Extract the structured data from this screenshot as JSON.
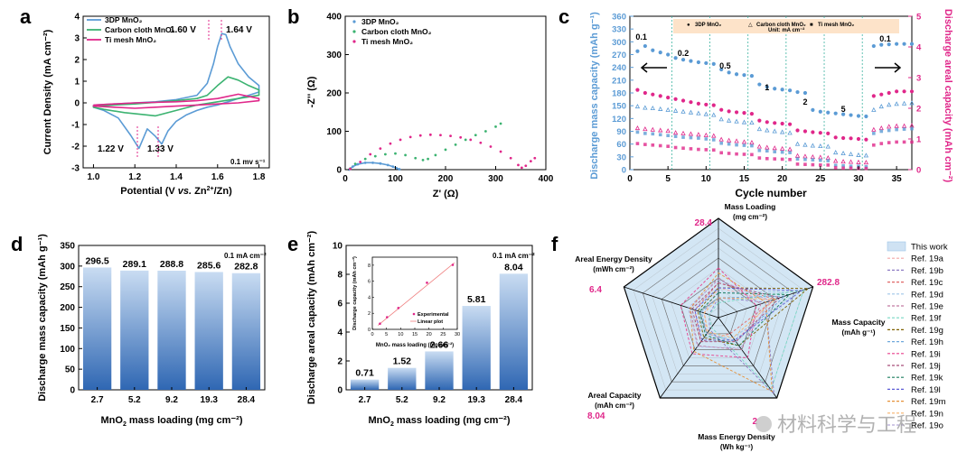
{
  "panel_letters": {
    "a": "a",
    "b": "b",
    "c": "c",
    "d": "d",
    "e": "e",
    "f": "f"
  },
  "colors": {
    "blue": "#5b9bd5",
    "green": "#3cb371",
    "magenta": "#e0278a",
    "pinkfill": "#f4c9dd",
    "bluefill": "#d3e6f4",
    "grid": "#777777",
    "axis": "#000000",
    "bar_top": "#c9dcf2",
    "bar_bottom": "#2f67b3"
  },
  "watermark": "材料科学与工程",
  "chart_data": [
    {
      "id": "a",
      "type": "line",
      "title": "",
      "xlabel_pre": "Potential (V ",
      "xlabel_vs": "vs.",
      "xlabel_mid": " Zn",
      "xlabel_sup": "2+",
      "xlabel_post": "/Zn)",
      "ylabel": "Current Density (mA cm⁻²)",
      "xlim": [
        0.95,
        1.85
      ],
      "ylim": [
        -3,
        4
      ],
      "xticks": [
        "1.0",
        "1.2",
        "1.4",
        "1.6",
        "1.8"
      ],
      "xtick_vals": [
        1.0,
        1.2,
        1.4,
        1.6,
        1.8
      ],
      "yticks": [
        "-3",
        "-2",
        "-1",
        "0",
        "1",
        "2",
        "3",
        "4"
      ],
      "ytick_vals": [
        -3,
        -2,
        -1,
        0,
        1,
        2,
        3,
        4
      ],
      "legend": [
        "3DP MnO₂",
        "Carbon cloth MnO₂",
        "Ti mesh MnO₂"
      ],
      "annotations": {
        "p160": "1.60 V",
        "p164": "1.64 V",
        "p122": "1.22 V",
        "p133": "1.33 V",
        "scan": "0.1 mv s⁻¹"
      },
      "series": [
        {
          "name": "3DP MnO₂",
          "color": "#5b9bd5",
          "x": [
            1.0,
            1.1,
            1.2,
            1.3,
            1.4,
            1.45,
            1.5,
            1.55,
            1.58,
            1.6,
            1.62,
            1.64,
            1.66,
            1.7,
            1.75,
            1.8,
            1.8,
            1.75,
            1.7,
            1.65,
            1.6,
            1.55,
            1.5,
            1.45,
            1.4,
            1.36,
            1.33,
            1.3,
            1.26,
            1.22,
            1.18,
            1.12,
            1.05,
            1.0,
            1.0
          ],
          "y": [
            -0.1,
            -0.05,
            0.0,
            0.05,
            0.15,
            0.25,
            0.35,
            0.9,
            1.8,
            2.6,
            3.2,
            3.15,
            2.6,
            1.8,
            1.2,
            0.8,
            0.5,
            0.35,
            0.2,
            0.05,
            -0.1,
            -0.2,
            -0.35,
            -0.55,
            -0.85,
            -1.3,
            -1.9,
            -1.55,
            -1.2,
            -2.1,
            -1.5,
            -0.7,
            -0.35,
            -0.2,
            -0.1
          ]
        },
        {
          "name": "Carbon cloth MnO₂",
          "color": "#3cb371",
          "x": [
            1.0,
            1.2,
            1.4,
            1.5,
            1.55,
            1.6,
            1.65,
            1.7,
            1.75,
            1.8,
            1.8,
            1.7,
            1.6,
            1.5,
            1.4,
            1.3,
            1.25,
            1.15,
            1.05,
            1.0,
            1.0
          ],
          "y": [
            -0.15,
            -0.05,
            0.1,
            0.2,
            0.35,
            0.8,
            1.2,
            1.05,
            0.8,
            0.6,
            0.35,
            0.2,
            0.05,
            -0.1,
            -0.35,
            -0.6,
            -0.55,
            -0.45,
            -0.3,
            -0.2,
            -0.15
          ]
        },
        {
          "name": "Ti mesh MnO₂",
          "color": "#e0278a",
          "x": [
            1.0,
            1.2,
            1.4,
            1.5,
            1.6,
            1.7,
            1.75,
            1.8,
            1.8,
            1.7,
            1.6,
            1.5,
            1.4,
            1.3,
            1.2,
            1.1,
            1.0,
            1.0
          ],
          "y": [
            -0.1,
            0.0,
            0.05,
            0.1,
            0.2,
            0.4,
            0.3,
            0.2,
            0.1,
            0.0,
            -0.05,
            -0.1,
            -0.15,
            -0.2,
            -0.25,
            -0.2,
            -0.15,
            -0.1
          ]
        }
      ]
    },
    {
      "id": "b",
      "type": "scatter",
      "xlabel": "Z' (Ω)",
      "ylabel": "-Z'' (Ω)",
      "xlim": [
        0,
        400
      ],
      "ylim": [
        0,
        400
      ],
      "xticks": [
        "0",
        "100",
        "200",
        "300",
        "400"
      ],
      "xtick_vals": [
        0,
        100,
        200,
        300,
        400
      ],
      "yticks": [
        "0",
        "100",
        "200",
        "300",
        "400"
      ],
      "ytick_vals": [
        0,
        100,
        200,
        300,
        400
      ],
      "legend": [
        "3DP MnO₂",
        "Carbon cloth MnO₂",
        "Ti mesh MnO₂"
      ],
      "series": [
        {
          "name": "3DP MnO₂",
          "color": "#5b9bd5",
          "x": [
            8,
            15,
            25,
            40,
            55,
            70,
            85,
            95,
            102,
            108
          ],
          "y": [
            0,
            8,
            14,
            18,
            18,
            16,
            12,
            8,
            4,
            1
          ]
        },
        {
          "name": "Carbon cloth MnO₂",
          "color": "#3cb371",
          "x": [
            10,
            20,
            40,
            60,
            80,
            100,
            120,
            140,
            155,
            165,
            180,
            200,
            220,
            240,
            260,
            280,
            300,
            310
          ],
          "y": [
            3,
            15,
            28,
            35,
            40,
            42,
            38,
            30,
            25,
            28,
            38,
            52,
            65,
            78,
            90,
            100,
            112,
            120
          ]
        },
        {
          "name": "Ti mesh MnO₂",
          "color": "#e0278a",
          "x": [
            10,
            30,
            50,
            70,
            90,
            110,
            130,
            150,
            170,
            190,
            210,
            230,
            250,
            270,
            290,
            310,
            330,
            345,
            352,
            360,
            370,
            378
          ],
          "y": [
            2,
            20,
            40,
            55,
            68,
            78,
            85,
            89,
            91,
            90,
            88,
            84,
            78,
            70,
            60,
            47,
            30,
            12,
            5,
            10,
            22,
            30
          ]
        }
      ]
    },
    {
      "id": "c",
      "type": "scatter",
      "xlabel": "Cycle number",
      "ylabel": "Discharge mass capacity (mAh g⁻¹)",
      "y2label": "Discharge areal capacity (mAh cm⁻²)",
      "xlim": [
        0,
        37
      ],
      "ylim": [
        0,
        360
      ],
      "y2lim": [
        0,
        5
      ],
      "xticks": [
        "0",
        "5",
        "10",
        "15",
        "20",
        "25",
        "30",
        "35"
      ],
      "xtick_vals": [
        0,
        5,
        10,
        15,
        20,
        25,
        30,
        35
      ],
      "yticks": [
        "0",
        "30",
        "60",
        "90",
        "120",
        "150",
        "180",
        "210",
        "240",
        "270",
        "300",
        "330",
        "360"
      ],
      "ytick_vals": [
        0,
        30,
        60,
        90,
        120,
        150,
        180,
        210,
        240,
        270,
        300,
        330,
        360
      ],
      "y2ticks": [
        "0",
        "1",
        "2",
        "3",
        "4",
        "5"
      ],
      "y2tick_vals": [
        0,
        1,
        2,
        3,
        4,
        5
      ],
      "legend": [
        "3DP MnO₂",
        "Carbon cloth MnO₂",
        "Ti mesh MnO₂"
      ],
      "unit_note": "Unit: mA cm⁻²",
      "rate_labels": [
        {
          "text": "0.1",
          "x": 1.5
        },
        {
          "text": "0.2",
          "x": 7
        },
        {
          "text": "0.5",
          "x": 12.5
        },
        {
          "text": "1",
          "x": 18
        },
        {
          "text": "2",
          "x": 23
        },
        {
          "text": "5",
          "x": 28
        },
        {
          "text": "0.1",
          "x": 33.5
        }
      ],
      "dividers": [
        5.5,
        10.5,
        15.5,
        20.5,
        25.5,
        30.5
      ],
      "series": [
        {
          "name": "3DP mass",
          "color": "#5b9bd5",
          "marker": "circle",
          "values": [
            278,
            290,
            280,
            275,
            270,
            262,
            258,
            255,
            252,
            250,
            248,
            235,
            228,
            224,
            222,
            220,
            200,
            194,
            190,
            188,
            186,
            182,
            180,
            140,
            136,
            134,
            132,
            130,
            128,
            126,
            125,
            290,
            293,
            294,
            295,
            295,
            295
          ]
        },
        {
          "name": "3DP areal",
          "color": "#e0278a",
          "marker": "circle",
          "values": [
            2.6,
            2.5,
            2.45,
            2.4,
            2.35,
            2.3,
            2.25,
            2.2,
            2.15,
            2.12,
            2.1,
            1.95,
            1.9,
            1.87,
            1.85,
            1.82,
            1.6,
            1.55,
            1.52,
            1.5,
            1.48,
            1.28,
            1.25,
            1.22,
            1.2,
            1.18,
            1.05,
            1.03,
            1.02,
            1.0,
            0.98,
            2.4,
            2.45,
            2.5,
            2.55,
            2.55,
            2.55
          ]
        },
        {
          "name": "CC mass",
          "color": "#5b9bd5",
          "marker": "triangle",
          "values": [
            148,
            145,
            144,
            142,
            140,
            138,
            136,
            134,
            132,
            130,
            128,
            118,
            115,
            113,
            111,
            110,
            95,
            92,
            90,
            88,
            86,
            60,
            58,
            56,
            55,
            54,
            40,
            38,
            36,
            34,
            33,
            140,
            148,
            152,
            154,
            155,
            156
          ]
        },
        {
          "name": "CC areal",
          "color": "#e0278a",
          "marker": "triangle",
          "values": [
            1.35,
            1.32,
            1.3,
            1.28,
            1.26,
            1.2,
            1.18,
            1.16,
            1.14,
            1.12,
            1.1,
            0.98,
            0.95,
            0.93,
            0.9,
            0.88,
            0.75,
            0.72,
            0.7,
            0.68,
            0.66,
            0.45,
            0.43,
            0.41,
            0.4,
            0.38,
            0.28,
            0.26,
            0.25,
            0.24,
            0.23,
            1.3,
            1.35,
            1.4,
            1.42,
            1.42,
            1.43
          ]
        },
        {
          "name": "Ti mass",
          "color": "#5b9bd5",
          "marker": "square",
          "values": [
            88,
            85,
            84,
            82,
            80,
            78,
            76,
            75,
            74,
            72,
            70,
            62,
            60,
            58,
            57,
            56,
            45,
            44,
            42,
            41,
            40,
            25,
            24,
            23,
            22,
            21,
            10,
            9,
            8,
            8,
            7,
            85,
            90,
            92,
            94,
            95,
            96
          ]
        },
        {
          "name": "Ti areal",
          "color": "#e0278a",
          "marker": "square",
          "values": [
            0.85,
            0.82,
            0.8,
            0.78,
            0.76,
            0.72,
            0.7,
            0.68,
            0.66,
            0.65,
            0.64,
            0.55,
            0.53,
            0.51,
            0.5,
            0.49,
            0.38,
            0.36,
            0.35,
            0.34,
            0.33,
            0.18,
            0.17,
            0.16,
            0.15,
            0.15,
            0.06,
            0.05,
            0.05,
            0.04,
            0.04,
            0.8,
            0.85,
            0.88,
            0.9,
            0.9,
            0.9
          ]
        }
      ]
    },
    {
      "id": "d",
      "type": "bar",
      "xlabel_pre": "MnO",
      "xlabel_sub": "2",
      "xlabel_post": " mass loading (mg cm⁻²)",
      "ylabel": "Discharge mass capacity (mAh g⁻¹)",
      "note": "0.1 mA cm⁻²",
      "categories": [
        "2.7",
        "5.2",
        "9.2",
        "19.3",
        "28.4"
      ],
      "values": [
        296.5,
        289.1,
        288.8,
        285.6,
        282.8
      ],
      "value_labels": [
        "296.5",
        "289.1",
        "288.8",
        "285.6",
        "282.8"
      ],
      "ylim": [
        0,
        350
      ],
      "yticks": [
        "0",
        "50",
        "100",
        "150",
        "200",
        "250",
        "300",
        "350"
      ],
      "ytick_vals": [
        0,
        50,
        100,
        150,
        200,
        250,
        300,
        350
      ]
    },
    {
      "id": "e",
      "type": "bar",
      "xlabel_pre": "MnO",
      "xlabel_sub": "2",
      "xlabel_post": " mass loading (mg cm⁻²)",
      "ylabel": "Discharge areal capacity (mAh cm⁻²)",
      "note": "0.1 mA cm⁻²",
      "categories": [
        "2.7",
        "5.2",
        "9.2",
        "19.3",
        "28.4"
      ],
      "values": [
        0.71,
        1.52,
        2.66,
        5.81,
        8.04
      ],
      "value_labels": [
        "0.71",
        "1.52",
        "2.66",
        "5.81",
        "8.04"
      ],
      "ylim": [
        0,
        10
      ],
      "yticks": [
        "0",
        "2",
        "4",
        "6",
        "8",
        "10"
      ],
      "ytick_vals": [
        0,
        2,
        4,
        6,
        8,
        10
      ],
      "inset": {
        "type": "scatter",
        "xlabel": "MnO₂ mass loading (mg cm⁻²)",
        "ylabel": "Discharge capacity (mAh cm⁻²)",
        "xlim": [
          0,
          30
        ],
        "ylim": [
          0,
          9
        ],
        "xticks": [
          "0",
          "5",
          "10",
          "15",
          "20",
          "25",
          "30"
        ],
        "xtick_vals": [
          0,
          5,
          10,
          15,
          20,
          25,
          30
        ],
        "yticks": [
          "0",
          "2",
          "4",
          "6",
          "8"
        ],
        "ytick_vals": [
          0,
          2,
          4,
          6,
          8
        ],
        "legend": [
          "Experimental",
          "Linear plot"
        ],
        "x": [
          2.7,
          5.2,
          9.2,
          19.3,
          28.4
        ],
        "y": [
          0.71,
          1.52,
          2.66,
          5.81,
          8.04
        ],
        "fit": [
          [
            2.0,
            0.5
          ],
          [
            29,
            8.3
          ]
        ]
      }
    },
    {
      "id": "f",
      "type": "radar",
      "axes": [
        {
          "l1": "Mass Loading",
          "l2": "(mg cm⁻²)",
          "value": "28.4"
        },
        {
          "l1": "Mass Capacity",
          "l2": "(mAh g⁻¹)",
          "value": "282.8"
        },
        {
          "l1": "Mass Energy Density",
          "l2": "(Wh kg⁻¹)",
          "value": "2"
        },
        {
          "l1": "Areal Capacity",
          "l2": "(mAh cm⁻²)",
          "value": "8.04"
        },
        {
          "l1": "Areal Energy Density",
          "l2": "(mWh cm⁻²)",
          "value": "6.4"
        }
      ],
      "legend": [
        "This work",
        "Ref. 19a",
        "Ref. 19b",
        "Ref. 19c",
        "Ref. 19d",
        "Ref. 19e",
        "Ref. 19f",
        "Ref. 19g",
        "Ref. 19h",
        "Ref. 19i",
        "Ref. 19j",
        "Ref. 19k",
        "Ref. 19l",
        "Ref. 19m",
        "Ref. 19n",
        "Ref. 19o"
      ],
      "legend_colors": [
        "#cfe2f3",
        "#f4a6a6",
        "#8e7cc3",
        "#e06666",
        "#9fc5e8",
        "#c27ba0",
        "#76d7c4",
        "#7f6000",
        "#6fa8dc",
        "#e83e8c",
        "#a64d79",
        "#1b7f5e",
        "#5b5bd6",
        "#e69138",
        "#f6b26b",
        "#b4a7d6"
      ],
      "this_work": [
        1,
        1,
        1,
        1,
        1
      ],
      "refs": [
        [
          0.3,
          0.55,
          0.3,
          0.2,
          0.15
        ],
        [
          0.2,
          0.5,
          0.95,
          0.15,
          0.1
        ],
        [
          0.35,
          0.6,
          0.2,
          0.3,
          0.25
        ],
        [
          0.25,
          0.85,
          0.25,
          0.25,
          0.2
        ],
        [
          0.4,
          0.45,
          0.4,
          0.35,
          0.3
        ],
        [
          0.15,
          0.9,
          0.9,
          0.12,
          0.1
        ],
        [
          0.3,
          0.95,
          0.35,
          0.25,
          0.22
        ],
        [
          0.2,
          0.7,
          0.3,
          0.2,
          0.18
        ],
        [
          0.5,
          0.4,
          0.5,
          0.45,
          0.4
        ],
        [
          0.35,
          0.65,
          0.3,
          0.3,
          0.28
        ],
        [
          0.25,
          0.75,
          0.35,
          0.22,
          0.2
        ],
        [
          0.3,
          0.88,
          0.28,
          0.28,
          0.25
        ],
        [
          0.45,
          0.5,
          0.92,
          0.42,
          0.3
        ],
        [
          0.2,
          0.6,
          0.25,
          0.18,
          0.15
        ],
        [
          0.38,
          0.55,
          0.38,
          0.36,
          0.32
        ]
      ]
    }
  ]
}
